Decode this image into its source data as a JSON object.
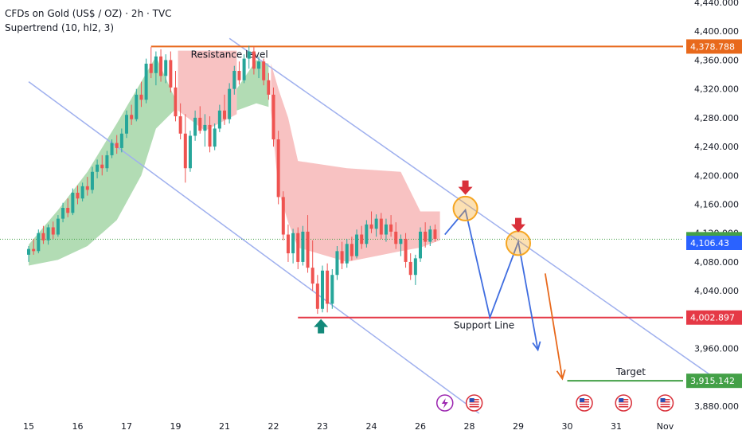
{
  "header": {
    "title": "CFDs on Gold (US$ / OZ) · 2h · TVC",
    "indicator": "Supertrend (10, hl2, 3)"
  },
  "colors": {
    "up_candle": "#26a69a",
    "down_candle": "#ef5350",
    "supertrend_up_fill": "#a5d6a7",
    "supertrend_down_fill": "#f7b7b7",
    "channel": "#9fb0ee",
    "resistance": "#e8691c",
    "support": "#e53946",
    "target": "#43a047",
    "projection": "#3f6de0",
    "last_price": "#43a047",
    "bid_price": "#2a62ff",
    "marker_red": "#d9303a",
    "marker_green": "#13897a",
    "highlight_circle": "#f5a623"
  },
  "chart_data": {
    "type": "candlestick",
    "title": "CFDs on Gold (US$ / OZ) · 2h · TVC",
    "yaxis": {
      "ticks": [
        "4,440.000",
        "4,400.000",
        "4,360.000",
        "4,320.000",
        "4,280.000",
        "4,240.000",
        "4,200.000",
        "4,160.000",
        "4,120.000",
        "4,080.000",
        "4,040.000",
        "4,000.000",
        "3,960.000",
        "3,920.000",
        "3,880.000"
      ],
      "tick_values": [
        4440,
        4400,
        4360,
        4320,
        4280,
        4240,
        4200,
        4160,
        4120,
        4080,
        4040,
        4000,
        3960,
        3920,
        3880
      ],
      "range": [
        3870,
        4452
      ]
    },
    "xaxis": {
      "ticks": [
        "15",
        "16",
        "17",
        "19",
        "21",
        "22",
        "23",
        "24",
        "26",
        "28",
        "29",
        "30",
        "31",
        "Nov"
      ],
      "tick_positions": [
        0.5,
        1.5,
        2.5,
        3.5,
        4.5,
        5.5,
        6.5,
        7.5,
        8.5,
        9.5,
        10.5,
        11.5,
        12.5,
        13.5
      ]
    },
    "levels": [
      {
        "name": "Resistance level",
        "label": "Resistance level",
        "value": 4378.788,
        "price_label": "4,378.788",
        "x_start": 2.5,
        "x_end": 14.2
      },
      {
        "name": "Support Line",
        "label": "Support Line",
        "value": 4002.897,
        "price_label": "4,002.897",
        "x_start": 5.5,
        "x_end": 14.2
      },
      {
        "name": "Target",
        "label": "Target",
        "value": 3915.142,
        "price_label": "3,915.142",
        "x_start": 11.0,
        "x_end": 14.2
      }
    ],
    "last_price": {
      "value": 4111.555,
      "label": "4,111.555"
    },
    "bid_price": {
      "value": 4106.43,
      "label": "4,106.43"
    },
    "channel": {
      "upper": [
        {
          "x": 4.1,
          "y": 4390
        },
        {
          "x": 14.2,
          "y": 3910
        }
      ],
      "lower": [
        {
          "x": 0.0,
          "y": 4330
        },
        {
          "x": 9.2,
          "y": 3870
        }
      ]
    },
    "projection_path": [
      {
        "x": 8.5,
        "y": 4118
      },
      {
        "x": 8.92,
        "y": 4152
      },
      {
        "x": 9.42,
        "y": 4003
      },
      {
        "x": 10.0,
        "y": 4108
      },
      {
        "x": 10.4,
        "y": 3958
      }
    ],
    "orange_arrow": [
      {
        "x": 10.55,
        "y": 4064
      },
      {
        "x": 10.9,
        "y": 3918
      }
    ],
    "circles": [
      {
        "x": 8.92,
        "y": 4154
      },
      {
        "x": 10.0,
        "y": 4106
      }
    ],
    "down_markers": [
      {
        "x": 8.92,
        "y": 4182
      },
      {
        "x": 10.0,
        "y": 4130
      }
    ],
    "up_markers": [
      {
        "x": 5.97,
        "y": 3992
      }
    ],
    "event_icons": [
      {
        "x": 8.5,
        "type": "lightning"
      },
      {
        "x": 9.1,
        "type": "us-flag"
      },
      {
        "x": 11.35,
        "type": "us-flag"
      },
      {
        "x": 12.15,
        "type": "us-flag"
      },
      {
        "x": 13.0,
        "type": "us-flag"
      }
    ],
    "supertrend_up_fill": [
      {
        "x": 0.0,
        "top": 4104,
        "base": 4075
      },
      {
        "x": 0.6,
        "top": 4152,
        "base": 4083
      },
      {
        "x": 1.2,
        "top": 4205,
        "base": 4102
      },
      {
        "x": 1.8,
        "top": 4272,
        "base": 4138
      },
      {
        "x": 2.3,
        "top": 4330,
        "base": 4200
      },
      {
        "x": 2.6,
        "top": 4365,
        "base": 4265
      },
      {
        "x": 3.0,
        "top": 4305,
        "base": 4292
      }
    ],
    "supertrend_down_fill": [
      {
        "x": 3.05,
        "top": 4373,
        "base": 4290
      },
      {
        "x": 3.6,
        "top": 4373,
        "base": 4262
      },
      {
        "x": 4.25,
        "top": 4373,
        "base": 4285
      }
    ],
    "supertrend_up_fill2": [
      {
        "x": 4.25,
        "top": 4320,
        "base": 4290
      },
      {
        "x": 4.65,
        "top": 4360,
        "base": 4300
      },
      {
        "x": 4.9,
        "top": 4355,
        "base": 4295
      }
    ],
    "supertrend_down_fill2": [
      {
        "x": 4.95,
        "top": 4355,
        "base": 4290
      },
      {
        "x": 5.1,
        "top": 4320,
        "base": 4180
      },
      {
        "x": 5.3,
        "top": 4280,
        "base": 4135
      },
      {
        "x": 5.5,
        "top": 4220,
        "base": 4100
      },
      {
        "x": 6.5,
        "top": 4210,
        "base": 4080
      },
      {
        "x": 7.6,
        "top": 4205,
        "base": 4095
      },
      {
        "x": 8.0,
        "top": 4150,
        "base": 4100
      },
      {
        "x": 8.4,
        "top": 4150,
        "base": 4110
      }
    ],
    "candles": [
      {
        "x": 0.0,
        "o": 4090,
        "h": 4102,
        "l": 4080,
        "c": 4098
      },
      {
        "x": 0.1,
        "o": 4098,
        "h": 4112,
        "l": 4090,
        "c": 4095
      },
      {
        "x": 0.2,
        "o": 4095,
        "h": 4125,
        "l": 4092,
        "c": 4120
      },
      {
        "x": 0.3,
        "o": 4120,
        "h": 4130,
        "l": 4105,
        "c": 4110
      },
      {
        "x": 0.4,
        "o": 4110,
        "h": 4132,
        "l": 4104,
        "c": 4128
      },
      {
        "x": 0.5,
        "o": 4128,
        "h": 4136,
        "l": 4112,
        "c": 4118
      },
      {
        "x": 0.6,
        "o": 4118,
        "h": 4145,
        "l": 4115,
        "c": 4140
      },
      {
        "x": 0.7,
        "o": 4140,
        "h": 4162,
        "l": 4135,
        "c": 4155
      },
      {
        "x": 0.8,
        "o": 4155,
        "h": 4168,
        "l": 4142,
        "c": 4148
      },
      {
        "x": 0.9,
        "o": 4148,
        "h": 4182,
        "l": 4145,
        "c": 4176
      },
      {
        "x": 1.0,
        "o": 4176,
        "h": 4186,
        "l": 4160,
        "c": 4168
      },
      {
        "x": 1.1,
        "o": 4168,
        "h": 4190,
        "l": 4164,
        "c": 4185
      },
      {
        "x": 1.2,
        "o": 4185,
        "h": 4198,
        "l": 4172,
        "c": 4180
      },
      {
        "x": 1.3,
        "o": 4180,
        "h": 4212,
        "l": 4175,
        "c": 4205
      },
      {
        "x": 1.4,
        "o": 4205,
        "h": 4222,
        "l": 4196,
        "c": 4215
      },
      {
        "x": 1.5,
        "o": 4215,
        "h": 4228,
        "l": 4200,
        "c": 4210
      },
      {
        "x": 1.6,
        "o": 4210,
        "h": 4234,
        "l": 4205,
        "c": 4228
      },
      {
        "x": 1.7,
        "o": 4228,
        "h": 4250,
        "l": 4224,
        "c": 4245
      },
      {
        "x": 1.8,
        "o": 4245,
        "h": 4256,
        "l": 4230,
        "c": 4238
      },
      {
        "x": 1.9,
        "o": 4238,
        "h": 4265,
        "l": 4232,
        "c": 4258
      },
      {
        "x": 2.0,
        "o": 4258,
        "h": 4290,
        "l": 4252,
        "c": 4284
      },
      {
        "x": 2.1,
        "o": 4284,
        "h": 4298,
        "l": 4270,
        "c": 4278
      },
      {
        "x": 2.2,
        "o": 4278,
        "h": 4320,
        "l": 4275,
        "c": 4312
      },
      {
        "x": 2.3,
        "o": 4312,
        "h": 4330,
        "l": 4295,
        "c": 4305
      },
      {
        "x": 2.4,
        "o": 4305,
        "h": 4362,
        "l": 4300,
        "c": 4355
      },
      {
        "x": 2.5,
        "o": 4355,
        "h": 4378,
        "l": 4335,
        "c": 4342
      },
      {
        "x": 2.6,
        "o": 4342,
        "h": 4372,
        "l": 4325,
        "c": 4365
      },
      {
        "x": 2.7,
        "o": 4365,
        "h": 4375,
        "l": 4330,
        "c": 4338
      },
      {
        "x": 2.8,
        "o": 4338,
        "h": 4368,
        "l": 4328,
        "c": 4360
      },
      {
        "x": 2.9,
        "o": 4360,
        "h": 4372,
        "l": 4315,
        "c": 4322
      },
      {
        "x": 3.0,
        "o": 4322,
        "h": 4345,
        "l": 4275,
        "c": 4282
      },
      {
        "x": 3.1,
        "o": 4282,
        "h": 4300,
        "l": 4250,
        "c": 4258
      },
      {
        "x": 3.2,
        "o": 4258,
        "h": 4285,
        "l": 4190,
        "c": 4210
      },
      {
        "x": 3.3,
        "o": 4210,
        "h": 4262,
        "l": 4205,
        "c": 4255
      },
      {
        "x": 3.4,
        "o": 4255,
        "h": 4290,
        "l": 4248,
        "c": 4280
      },
      {
        "x": 3.5,
        "o": 4280,
        "h": 4296,
        "l": 4258,
        "c": 4262
      },
      {
        "x": 3.6,
        "o": 4262,
        "h": 4285,
        "l": 4240,
        "c": 4270
      },
      {
        "x": 3.7,
        "o": 4270,
        "h": 4282,
        "l": 4232,
        "c": 4240
      },
      {
        "x": 3.8,
        "o": 4240,
        "h": 4272,
        "l": 4235,
        "c": 4265
      },
      {
        "x": 3.9,
        "o": 4265,
        "h": 4298,
        "l": 4260,
        "c": 4290
      },
      {
        "x": 4.0,
        "o": 4290,
        "h": 4312,
        "l": 4270,
        "c": 4278
      },
      {
        "x": 4.1,
        "o": 4278,
        "h": 4328,
        "l": 4272,
        "c": 4320
      },
      {
        "x": 4.2,
        "o": 4320,
        "h": 4352,
        "l": 4312,
        "c": 4345
      },
      {
        "x": 4.3,
        "o": 4345,
        "h": 4358,
        "l": 4326,
        "c": 4332
      },
      {
        "x": 4.4,
        "o": 4332,
        "h": 4368,
        "l": 4328,
        "c": 4362
      },
      {
        "x": 4.5,
        "o": 4362,
        "h": 4380,
        "l": 4348,
        "c": 4372
      },
      {
        "x": 4.6,
        "o": 4372,
        "h": 4378,
        "l": 4340,
        "c": 4348
      },
      {
        "x": 4.7,
        "o": 4348,
        "h": 4365,
        "l": 4335,
        "c": 4358
      },
      {
        "x": 4.8,
        "o": 4358,
        "h": 4362,
        "l": 4325,
        "c": 4332
      },
      {
        "x": 4.9,
        "o": 4332,
        "h": 4342,
        "l": 4305,
        "c": 4312
      },
      {
        "x": 5.0,
        "o": 4312,
        "h": 4322,
        "l": 4240,
        "c": 4250
      },
      {
        "x": 5.1,
        "o": 4250,
        "h": 4262,
        "l": 4160,
        "c": 4170
      },
      {
        "x": 5.2,
        "o": 4170,
        "h": 4178,
        "l": 4110,
        "c": 4118
      },
      {
        "x": 5.3,
        "o": 4118,
        "h": 4132,
        "l": 4080,
        "c": 4092
      },
      {
        "x": 5.4,
        "o": 4092,
        "h": 4126,
        "l": 4078,
        "c": 4120
      },
      {
        "x": 5.5,
        "o": 4120,
        "h": 4128,
        "l": 4070,
        "c": 4080
      },
      {
        "x": 5.6,
        "o": 4080,
        "h": 4130,
        "l": 4075,
        "c": 4122
      },
      {
        "x": 5.7,
        "o": 4122,
        "h": 4145,
        "l": 4065,
        "c": 4072
      },
      {
        "x": 5.8,
        "o": 4072,
        "h": 4110,
        "l": 4040,
        "c": 4050
      },
      {
        "x": 5.9,
        "o": 4050,
        "h": 4062,
        "l": 4008,
        "c": 4015
      },
      {
        "x": 6.0,
        "o": 4015,
        "h": 4075,
        "l": 4010,
        "c": 4068
      },
      {
        "x": 6.1,
        "o": 4068,
        "h": 4078,
        "l": 4010,
        "c": 4022
      },
      {
        "x": 6.2,
        "o": 4022,
        "h": 4070,
        "l": 4015,
        "c": 4062
      },
      {
        "x": 6.3,
        "o": 4062,
        "h": 4102,
        "l": 4055,
        "c": 4095
      },
      {
        "x": 6.4,
        "o": 4095,
        "h": 4108,
        "l": 4070,
        "c": 4078
      },
      {
        "x": 6.5,
        "o": 4078,
        "h": 4112,
        "l": 4072,
        "c": 4105
      },
      {
        "x": 6.6,
        "o": 4105,
        "h": 4115,
        "l": 4082,
        "c": 4088
      },
      {
        "x": 6.7,
        "o": 4088,
        "h": 4125,
        "l": 4085,
        "c": 4118
      },
      {
        "x": 6.8,
        "o": 4118,
        "h": 4130,
        "l": 4098,
        "c": 4105
      },
      {
        "x": 6.9,
        "o": 4105,
        "h": 4138,
        "l": 4100,
        "c": 4132
      },
      {
        "x": 7.0,
        "o": 4132,
        "h": 4150,
        "l": 4120,
        "c": 4126
      },
      {
        "x": 7.1,
        "o": 4126,
        "h": 4146,
        "l": 4115,
        "c": 4140
      },
      {
        "x": 7.2,
        "o": 4140,
        "h": 4148,
        "l": 4112,
        "c": 4118
      },
      {
        "x": 7.3,
        "o": 4118,
        "h": 4140,
        "l": 4108,
        "c": 4132
      },
      {
        "x": 7.4,
        "o": 4132,
        "h": 4145,
        "l": 4115,
        "c": 4122
      },
      {
        "x": 7.5,
        "o": 4122,
        "h": 4135,
        "l": 4098,
        "c": 4105
      },
      {
        "x": 7.6,
        "o": 4105,
        "h": 4118,
        "l": 4088,
        "c": 4112
      },
      {
        "x": 7.7,
        "o": 4112,
        "h": 4120,
        "l": 4072,
        "c": 4080
      },
      {
        "x": 7.8,
        "o": 4080,
        "h": 4092,
        "l": 4055,
        "c": 4062
      },
      {
        "x": 7.9,
        "o": 4062,
        "h": 4090,
        "l": 4048,
        "c": 4085
      },
      {
        "x": 8.0,
        "o": 4085,
        "h": 4128,
        "l": 4080,
        "c": 4122
      },
      {
        "x": 8.1,
        "o": 4122,
        "h": 4135,
        "l": 4100,
        "c": 4108
      },
      {
        "x": 8.2,
        "o": 4108,
        "h": 4130,
        "l": 4102,
        "c": 4125
      },
      {
        "x": 8.3,
        "o": 4125,
        "h": 4132,
        "l": 4108,
        "c": 4112
      }
    ]
  }
}
